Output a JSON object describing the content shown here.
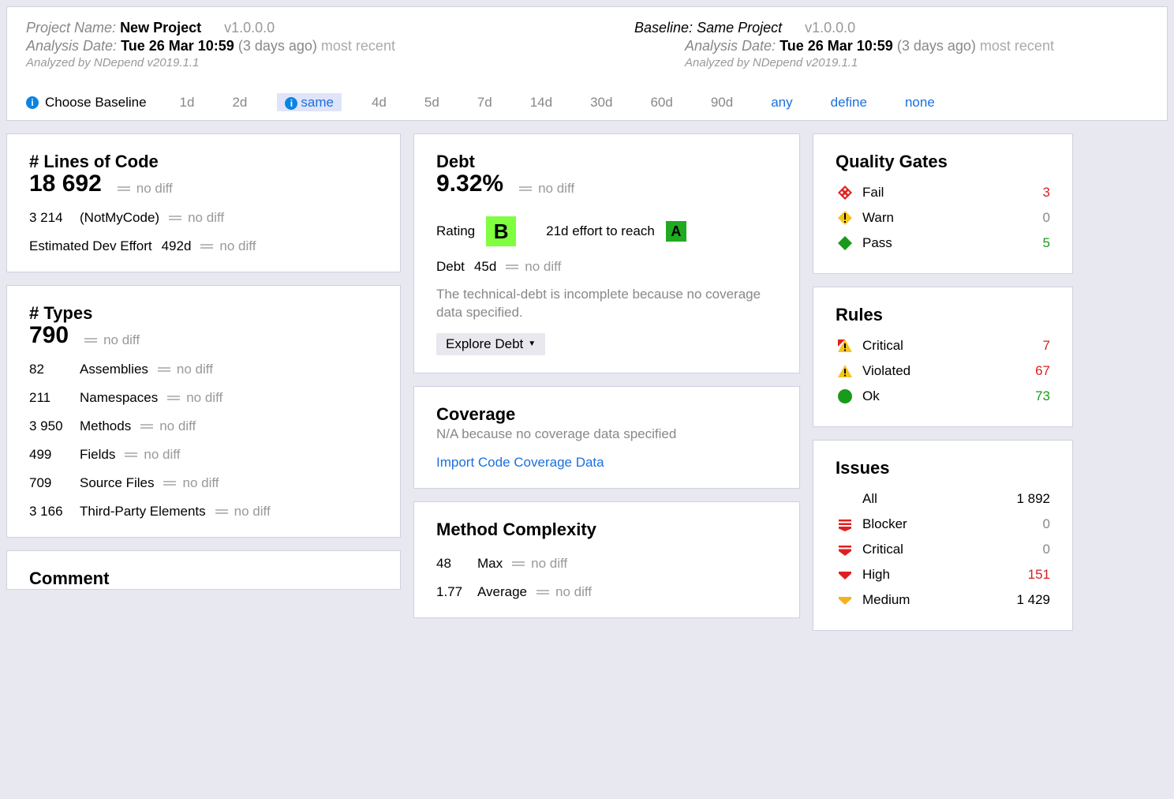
{
  "header": {
    "project": {
      "label": "Project Name:",
      "name": "New Project",
      "version": "v1.0.0.0",
      "analysis_label": "Analysis Date:",
      "analysis_date": "Tue 26 Mar  10:59",
      "ago": "(3 days ago)",
      "recent": "most recent",
      "analyzed_by": "Analyzed by NDepend v2019.1.1"
    },
    "baseline": {
      "label": "Baseline:",
      "name": "Same Project",
      "version": "v1.0.0.0",
      "analysis_label": "Analysis Date:",
      "analysis_date": "Tue 26 Mar  10:59",
      "ago": "(3 days ago)",
      "recent": "most recent",
      "analyzed_by": "Analyzed by NDepend v2019.1.1"
    },
    "choose_label": "Choose Baseline",
    "options": [
      "1d",
      "2d",
      "same",
      "4d",
      "5d",
      "7d",
      "14d",
      "30d",
      "60d",
      "90d",
      "any",
      "define",
      "none"
    ],
    "selected": "same"
  },
  "loc": {
    "title": "# Lines of Code",
    "value": "18 692",
    "notmycode_val": "3 214",
    "notmycode_label": "(NotMyCode)",
    "effort_label": "Estimated Dev Effort",
    "effort_val": "492d"
  },
  "types": {
    "title": "# Types",
    "value": "790",
    "rows": [
      {
        "val": "82",
        "label": "Assemblies"
      },
      {
        "val": "211",
        "label": "Namespaces"
      },
      {
        "val": "3 950",
        "label": "Methods"
      },
      {
        "val": "499",
        "label": "Fields"
      },
      {
        "val": "709",
        "label": "Source Files"
      },
      {
        "val": "3 166",
        "label": "Third-Party Elements"
      }
    ]
  },
  "comment": {
    "title": "Comment"
  },
  "debt": {
    "title": "Debt",
    "pct": "9.32%",
    "rating_label": "Rating",
    "rating": "B",
    "reach_label": "21d effort to reach",
    "reach_rating": "A",
    "debt_label": "Debt",
    "debt_val": "45d",
    "note": "The technical-debt is incomplete because no coverage data specified.",
    "explore": "Explore Debt"
  },
  "coverage": {
    "title": "Coverage",
    "subtitle": "N/A because no coverage data specified",
    "link": "Import Code Coverage Data"
  },
  "complexity": {
    "title": "Method Complexity",
    "max_val": "48",
    "max_label": "Max",
    "avg_val": "1.77",
    "avg_label": "Average"
  },
  "quality_gates": {
    "title": "Quality Gates",
    "rows": [
      {
        "icon": "fail",
        "label": "Fail",
        "val": "3",
        "cls": "val-red"
      },
      {
        "icon": "warn",
        "label": "Warn",
        "val": "0",
        "cls": "val-gray"
      },
      {
        "icon": "pass",
        "label": "Pass",
        "val": "5",
        "cls": "val-green"
      }
    ]
  },
  "rules": {
    "title": "Rules",
    "rows": [
      {
        "icon": "critical-rule",
        "label": "Critical",
        "val": "7",
        "cls": "val-red"
      },
      {
        "icon": "violated",
        "label": "Violated",
        "val": "67",
        "cls": "val-red"
      },
      {
        "icon": "ok",
        "label": "Ok",
        "val": "73",
        "cls": "val-green"
      }
    ]
  },
  "issues": {
    "title": "Issues",
    "rows": [
      {
        "icon": "",
        "label": "All",
        "val": "1 892",
        "cls": "val-black"
      },
      {
        "icon": "blocker",
        "label": "Blocker",
        "val": "0",
        "cls": "val-gray"
      },
      {
        "icon": "crit-issue",
        "label": "Critical",
        "val": "0",
        "cls": "val-gray"
      },
      {
        "icon": "high",
        "label": "High",
        "val": "151",
        "cls": "val-red"
      },
      {
        "icon": "medium",
        "label": "Medium",
        "val": "1 429",
        "cls": "val-black"
      }
    ]
  },
  "nodiff_text": "no diff",
  "colors": {
    "link": "#1a6fe0",
    "red": "#d82020",
    "green": "#1a9a1a",
    "gray": "#888",
    "rating_b_bg": "#7fff3f",
    "rating_a_bg": "#1faa1f"
  }
}
